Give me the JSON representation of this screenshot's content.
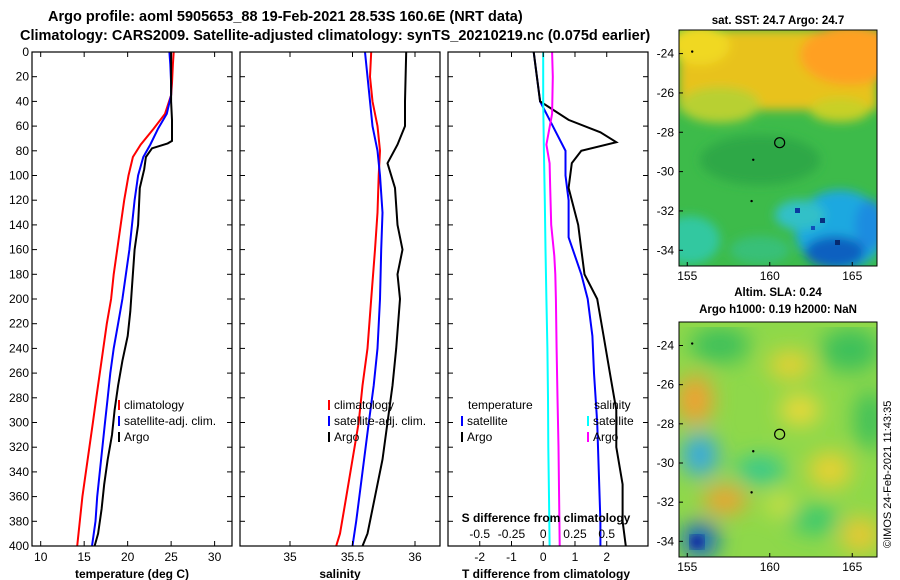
{
  "title_line1": "Argo profile: aoml 5905653_88 19-Feb-2021 28.53S 160.6E (NRT data)",
  "title_line2": "Climatology: CARS2009. Satellite-adjusted climatology: synTS_20210219.nc (0.075d earlier)",
  "colors": {
    "climatology": "#ff0000",
    "satellite": "#0000ff",
    "argo": "#000000",
    "temp_diff": "#00ffff",
    "sal_diff": "#ff00ff"
  },
  "chart_data": [
    {
      "type": "line",
      "id": "temperature",
      "xlabel": "temperature (deg C)",
      "ylabel": "",
      "xlim": [
        9,
        32
      ],
      "ylim": [
        400,
        0
      ],
      "xticks": [
        10,
        15,
        20,
        25,
        30
      ],
      "yticks": [
        0,
        20,
        40,
        60,
        80,
        100,
        120,
        140,
        160,
        180,
        200,
        220,
        240,
        260,
        280,
        300,
        320,
        340,
        360,
        380,
        400
      ],
      "legend": [
        "climatology",
        "satellite-adj. clim.",
        "Argo"
      ],
      "series": [
        {
          "name": "climatology",
          "color": "#ff0000",
          "points": [
            [
              25.3,
              0
            ],
            [
              25.2,
              10
            ],
            [
              25.1,
              25
            ],
            [
              25.0,
              35
            ],
            [
              24.3,
              50
            ],
            [
              23.0,
              62
            ],
            [
              21.5,
              75
            ],
            [
              20.6,
              85
            ],
            [
              20.1,
              100
            ],
            [
              19.6,
              120
            ],
            [
              19.2,
              140
            ],
            [
              18.8,
              160
            ],
            [
              18.4,
              180
            ],
            [
              18.1,
              200
            ],
            [
              17.6,
              220
            ],
            [
              17.2,
              240
            ],
            [
              16.8,
              260
            ],
            [
              16.4,
              280
            ],
            [
              16.0,
              300
            ],
            [
              15.6,
              320
            ],
            [
              15.2,
              340
            ],
            [
              14.8,
              360
            ],
            [
              14.5,
              380
            ],
            [
              14.2,
              400
            ]
          ]
        },
        {
          "name": "satellite-adj. clim.",
          "color": "#0000ff",
          "points": [
            [
              24.8,
              0
            ],
            [
              24.9,
              10
            ],
            [
              25.0,
              25
            ],
            [
              25.0,
              35
            ],
            [
              24.5,
              50
            ],
            [
              23.5,
              62
            ],
            [
              22.6,
              75
            ],
            [
              21.8,
              85
            ],
            [
              21.2,
              100
            ],
            [
              20.8,
              120
            ],
            [
              20.5,
              140
            ],
            [
              20.2,
              160
            ],
            [
              19.8,
              180
            ],
            [
              19.4,
              200
            ],
            [
              18.9,
              220
            ],
            [
              18.4,
              240
            ],
            [
              18.0,
              260
            ],
            [
              17.7,
              280
            ],
            [
              17.4,
              300
            ],
            [
              17.1,
              320
            ],
            [
              16.8,
              340
            ],
            [
              16.5,
              360
            ],
            [
              16.3,
              380
            ],
            [
              15.9,
              400
            ]
          ]
        },
        {
          "name": "Argo",
          "color": "#000000",
          "points": [
            [
              25.0,
              0
            ],
            [
              25.0,
              20
            ],
            [
              25.0,
              40
            ],
            [
              25.1,
              55
            ],
            [
              25.1,
              72
            ],
            [
              24.6,
              74
            ],
            [
              22.8,
              78
            ],
            [
              22.1,
              85
            ],
            [
              21.9,
              95
            ],
            [
              21.4,
              110
            ],
            [
              21.2,
              140
            ],
            [
              20.8,
              160
            ],
            [
              20.5,
              190
            ],
            [
              20.3,
              210
            ],
            [
              20.0,
              230
            ],
            [
              19.4,
              250
            ],
            [
              18.9,
              270
            ],
            [
              18.5,
              290
            ],
            [
              18.2,
              310
            ],
            [
              17.7,
              330
            ],
            [
              17.3,
              350
            ],
            [
              17.0,
              370
            ],
            [
              16.6,
              390
            ],
            [
              16.2,
              400
            ]
          ]
        }
      ]
    },
    {
      "type": "line",
      "id": "salinity",
      "xlabel": "salinity",
      "ylabel": "",
      "xlim": [
        34.6,
        36.2
      ],
      "ylim": [
        400,
        0
      ],
      "xticks": [
        35,
        35.5,
        36
      ],
      "xtick_labels": [
        "35",
        "35.5",
        "36"
      ],
      "legend": [
        "climatology",
        "satellite-adj. clim.",
        "Argo"
      ],
      "series": [
        {
          "name": "climatology",
          "color": "#ff0000",
          "points": [
            [
              35.65,
              0
            ],
            [
              35.64,
              20
            ],
            [
              35.66,
              40
            ],
            [
              35.7,
              60
            ],
            [
              35.72,
              80
            ],
            [
              35.71,
              100
            ],
            [
              35.7,
              130
            ],
            [
              35.68,
              160
            ],
            [
              35.65,
              200
            ],
            [
              35.62,
              240
            ],
            [
              35.58,
              270
            ],
            [
              35.55,
              300
            ],
            [
              35.5,
              330
            ],
            [
              35.45,
              360
            ],
            [
              35.4,
              390
            ],
            [
              35.37,
              400
            ]
          ]
        },
        {
          "name": "satellite-adj. clim.",
          "color": "#0000ff",
          "points": [
            [
              35.6,
              0
            ],
            [
              35.62,
              20
            ],
            [
              35.64,
              40
            ],
            [
              35.66,
              60
            ],
            [
              35.7,
              80
            ],
            [
              35.72,
              100
            ],
            [
              35.74,
              130
            ],
            [
              35.73,
              160
            ],
            [
              35.72,
              200
            ],
            [
              35.7,
              240
            ],
            [
              35.67,
              270
            ],
            [
              35.63,
              300
            ],
            [
              35.58,
              340
            ],
            [
              35.53,
              380
            ],
            [
              35.5,
              400
            ]
          ]
        },
        {
          "name": "Argo",
          "color": "#000000",
          "points": [
            [
              35.93,
              0
            ],
            [
              35.92,
              40
            ],
            [
              35.92,
              60
            ],
            [
              35.86,
              75
            ],
            [
              35.78,
              90
            ],
            [
              35.84,
              110
            ],
            [
              35.86,
              140
            ],
            [
              35.9,
              160
            ],
            [
              35.86,
              180
            ],
            [
              35.88,
              200
            ],
            [
              35.85,
              240
            ],
            [
              35.82,
              270
            ],
            [
              35.78,
              300
            ],
            [
              35.74,
              330
            ],
            [
              35.68,
              360
            ],
            [
              35.62,
              390
            ],
            [
              35.58,
              400
            ]
          ]
        }
      ]
    },
    {
      "type": "line",
      "id": "differences",
      "xlabel": "T difference from climatology",
      "xlabel_top": "S difference from climatology",
      "xlim": [
        -3,
        3.3
      ],
      "ylim": [
        400,
        0
      ],
      "xticks": [
        -2,
        -1,
        0,
        1,
        2
      ],
      "xtick_labels": [
        "-2",
        "-1",
        "0",
        "1",
        "2"
      ],
      "top_xticks": [
        -0.5,
        -0.25,
        0,
        0.25,
        0.5
      ],
      "top_xtick_labels": [
        "-0.5",
        "-0.25",
        "0",
        "0.25",
        "0.5"
      ],
      "legend_left_title": "temperature",
      "legend_right_title": "salinity",
      "legend_left": [
        "satellite",
        "Argo"
      ],
      "legend_right": [
        "satellite",
        "Argo"
      ],
      "series": [
        {
          "name": "T satellite",
          "color": "#0000ff",
          "points": [
            [
              -0.3,
              0
            ],
            [
              -0.2,
              20
            ],
            [
              -0.1,
              40
            ],
            [
              0.3,
              60
            ],
            [
              0.7,
              80
            ],
            [
              0.7,
              100
            ],
            [
              0.8,
              120
            ],
            [
              0.8,
              150
            ],
            [
              1.2,
              180
            ],
            [
              1.4,
              200
            ],
            [
              1.55,
              230
            ],
            [
              1.6,
              260
            ],
            [
              1.7,
              300
            ],
            [
              1.75,
              340
            ],
            [
              1.8,
              380
            ],
            [
              1.8,
              400
            ]
          ]
        },
        {
          "name": "T Argo",
          "color": "#000000",
          "points": [
            [
              -0.3,
              0
            ],
            [
              -0.2,
              20
            ],
            [
              -0.1,
              40
            ],
            [
              0.8,
              55
            ],
            [
              1.8,
              65
            ],
            [
              2.3,
              73
            ],
            [
              1.2,
              80
            ],
            [
              0.9,
              90
            ],
            [
              0.8,
              110
            ],
            [
              1.1,
              140
            ],
            [
              1.2,
              160
            ],
            [
              1.3,
              180
            ],
            [
              1.7,
              200
            ],
            [
              1.9,
              230
            ],
            [
              2.1,
              260
            ],
            [
              2.3,
              290
            ],
            [
              2.3,
              320
            ],
            [
              2.5,
              350
            ],
            [
              2.5,
              380
            ],
            [
              2.6,
              400
            ]
          ]
        },
        {
          "name": "S satellite",
          "color": "#00ffff",
          "points": [
            [
              0.0,
              0
            ],
            [
              0.0,
              40
            ],
            [
              0.02,
              80
            ],
            [
              0.05,
              120
            ],
            [
              0.07,
              160
            ],
            [
              0.1,
              200
            ],
            [
              0.13,
              240
            ],
            [
              0.15,
              280
            ],
            [
              0.16,
              320
            ],
            [
              0.18,
              360
            ],
            [
              0.2,
              400
            ]
          ]
        },
        {
          "name": "S Argo",
          "color": "#ff00ff",
          "points": [
            [
              0.28,
              0
            ],
            [
              0.3,
              20
            ],
            [
              0.28,
              50
            ],
            [
              0.1,
              75
            ],
            [
              0.2,
              90
            ],
            [
              0.22,
              110
            ],
            [
              0.25,
              140
            ],
            [
              0.35,
              165
            ],
            [
              0.38,
              180
            ],
            [
              0.4,
              200
            ],
            [
              0.42,
              240
            ],
            [
              0.45,
              280
            ],
            [
              0.48,
              320
            ],
            [
              0.5,
              360
            ],
            [
              0.52,
              400
            ]
          ]
        }
      ]
    },
    {
      "type": "heatmap",
      "id": "sst_map",
      "title": "sat. SST: 24.7 Argo: 24.7",
      "xlim": [
        154.5,
        166.5
      ],
      "ylim": [
        -34.8,
        -22.8
      ],
      "xticks": [
        155,
        160,
        165
      ],
      "yticks": [
        -24,
        -26,
        -28,
        -30,
        -32,
        -34
      ],
      "float_position": [
        160.6,
        -28.53
      ]
    },
    {
      "type": "heatmap",
      "id": "sla_map",
      "title": "Altim. SLA: 0.24",
      "subtitle": "Argo h1000: 0.19 h2000: NaN",
      "xlim": [
        154.5,
        166.5
      ],
      "ylim": [
        -34.8,
        -22.8
      ],
      "xticks": [
        155,
        160,
        165
      ],
      "yticks": [
        -24,
        -26,
        -28,
        -30,
        -32,
        -34
      ],
      "float_position": [
        160.6,
        -28.53
      ]
    }
  ],
  "copyright": "©IMOS 24-Feb-2021 11:43:35"
}
